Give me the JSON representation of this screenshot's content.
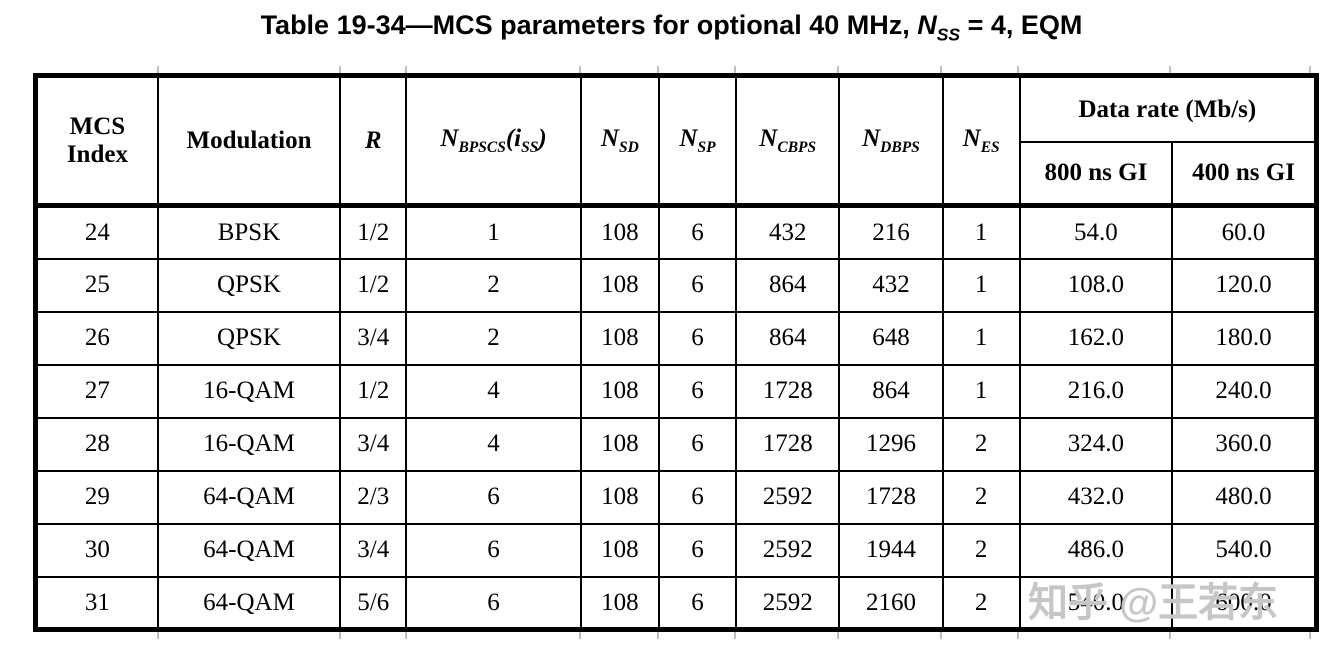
{
  "title": {
    "part1": "Table 19-34—MCS parameters for optional 40 MHz, ",
    "n": "N",
    "n_sub": "SS",
    "part2": " = 4, EQM"
  },
  "headers": {
    "mcs_line1": "MCS",
    "mcs_line2": "Index",
    "modulation": "Modulation",
    "r": "R",
    "nbpscs": {
      "base": "N",
      "sub": "BPSCS",
      "open": "(i",
      "arg_sub": "SS",
      "close": ")"
    },
    "nsd": {
      "base": "N",
      "sub": "SD"
    },
    "nsp": {
      "base": "N",
      "sub": "SP"
    },
    "ncbps": {
      "base": "N",
      "sub": "CBPS"
    },
    "ndbps": {
      "base": "N",
      "sub": "DBPS"
    },
    "nes": {
      "base": "N",
      "sub": "ES"
    },
    "data_rate": "Data rate (Mb/s)",
    "gi_800": "800 ns GI",
    "gi_400": "400 ns GI"
  },
  "table": {
    "rows": [
      [
        "24",
        "BPSK",
        "1/2",
        "1",
        "108",
        "6",
        "432",
        "216",
        "1",
        "54.0",
        "60.0"
      ],
      [
        "25",
        "QPSK",
        "1/2",
        "2",
        "108",
        "6",
        "864",
        "432",
        "1",
        "108.0",
        "120.0"
      ],
      [
        "26",
        "QPSK",
        "3/4",
        "2",
        "108",
        "6",
        "864",
        "648",
        "1",
        "162.0",
        "180.0"
      ],
      [
        "27",
        "16-QAM",
        "1/2",
        "4",
        "108",
        "6",
        "1728",
        "864",
        "1",
        "216.0",
        "240.0"
      ],
      [
        "28",
        "16-QAM",
        "3/4",
        "4",
        "108",
        "6",
        "1728",
        "1296",
        "2",
        "324.0",
        "360.0"
      ],
      [
        "29",
        "64-QAM",
        "2/3",
        "6",
        "108",
        "6",
        "2592",
        "1728",
        "2",
        "432.0",
        "480.0"
      ],
      [
        "30",
        "64-QAM",
        "3/4",
        "6",
        "108",
        "6",
        "2592",
        "1944",
        "2",
        "486.0",
        "540.0"
      ],
      [
        "31",
        "64-QAM",
        "5/6",
        "6",
        "108",
        "6",
        "2592",
        "2160",
        "2",
        "540.0",
        "600.0"
      ]
    ]
  },
  "watermark": {
    "text": "知乎 @王若东"
  },
  "colors": {
    "text": "#000000",
    "border": "#000000",
    "watermark": "#c6c6c6",
    "background": "#ffffff"
  }
}
